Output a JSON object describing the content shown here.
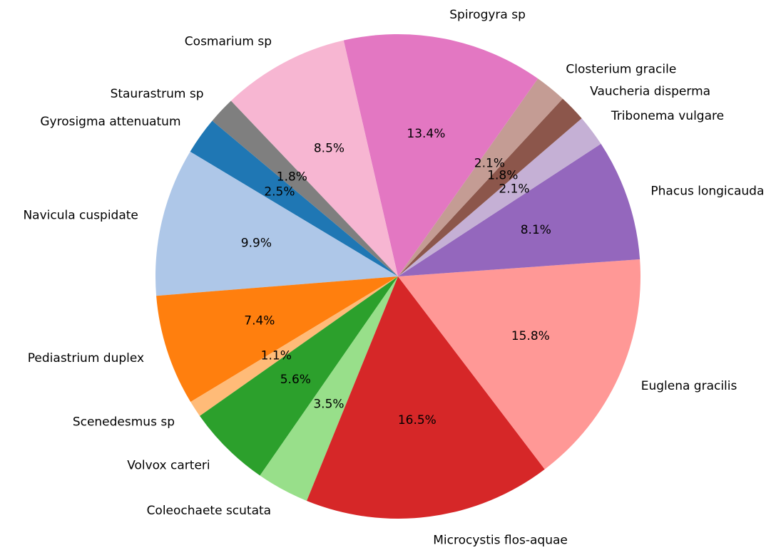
{
  "chart_data": {
    "type": "pie",
    "categories": [
      "Gyrosigma attenuatum",
      "Navicula cuspidate",
      "Pediastrium duplex",
      "Scenedesmus sp",
      "Volvox carteri",
      "Coleochaete scutata",
      "Microcystis flos-aquae",
      "Euglena gracilis",
      "Phacus longicauda",
      "Tribonema vulgare",
      "Vaucheria disperma",
      "Closterium gracile",
      "Spirogyra sp",
      "Cosmarium sp",
      "Staurastrum sp"
    ],
    "values": [
      2.5,
      9.9,
      7.4,
      1.1,
      5.6,
      3.5,
      16.5,
      15.8,
      8.1,
      2.1,
      1.8,
      2.1,
      13.4,
      8.5,
      1.8
    ],
    "value_labels": [
      "2.5%",
      "9.9%",
      "7.4%",
      "1.1%",
      "5.6%",
      "3.5%",
      "16.5%",
      "15.8%",
      "8.1%",
      "2.1%",
      "1.8%",
      "2.1%",
      "13.4%",
      "8.5%",
      "1.8%"
    ],
    "colors": [
      "#1f77b4",
      "#aec7e8",
      "#ff7f0e",
      "#ffbb78",
      "#2ca02c",
      "#98df8a",
      "#d62728",
      "#ff9896",
      "#9467bd",
      "#c5b0d5",
      "#8c564b",
      "#c49c94",
      "#e377c2",
      "#f7b6d2",
      "#7f7f7f"
    ]
  }
}
